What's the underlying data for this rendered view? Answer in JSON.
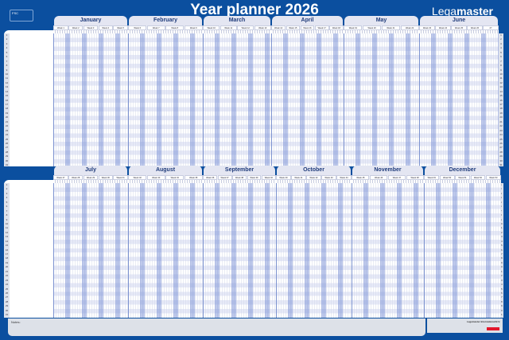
{
  "title": "Year planner 2026",
  "logo": {
    "light": "Lega",
    "bold": "master"
  },
  "fsc_label": "FSC",
  "row_numbers": [
    1,
    2,
    3,
    4,
    5,
    6,
    7,
    8,
    9,
    10,
    11,
    12,
    13,
    14,
    15,
    16,
    17,
    18,
    19,
    20,
    21,
    22,
    23,
    24,
    25,
    26,
    27,
    28,
    29,
    30,
    31
  ],
  "halves": [
    {
      "months": [
        {
          "name": "January",
          "weeks": [
            "Week 1",
            "Week 2",
            "Week 3",
            "Week 4",
            "Week 5"
          ]
        },
        {
          "name": "February",
          "weeks": [
            "Week 6",
            "Week 7",
            "Week 8",
            "Week 9"
          ]
        },
        {
          "name": "March",
          "weeks": [
            "Week 10",
            "Week 11",
            "Week 12",
            "Week 13"
          ]
        },
        {
          "name": "April",
          "weeks": [
            "Week 14",
            "Week 15",
            "Week 16",
            "Week 17",
            "Week 18"
          ]
        },
        {
          "name": "May",
          "weeks": [
            "Week 19",
            "Week 20",
            "Week 21",
            "Week 22"
          ]
        },
        {
          "name": "June",
          "weeks": [
            "Week 23",
            "Week 24",
            "Week 25",
            "Week 26",
            "27"
          ]
        }
      ]
    },
    {
      "months": [
        {
          "name": "July",
          "weeks": [
            "Week 27",
            "Week 28",
            "Week 29",
            "Week 30",
            "Week 31"
          ]
        },
        {
          "name": "August",
          "weeks": [
            "Week 32",
            "Week 33",
            "Week 34",
            "Week 35"
          ]
        },
        {
          "name": "September",
          "weeks": [
            "Week 36",
            "Week 37",
            "Week 38",
            "Week 39",
            "Week 40"
          ]
        },
        {
          "name": "October",
          "weeks": [
            "Week 40",
            "Week 41",
            "Week 42",
            "Week 43",
            "Week 44"
          ]
        },
        {
          "name": "November",
          "weeks": [
            "Week 45",
            "Week 46",
            "Week 47",
            "Week 48"
          ]
        },
        {
          "name": "December",
          "weeks": [
            "Week 49",
            "Week 50",
            "Week 51",
            "Week 52",
            "Week 53"
          ]
        }
      ]
    }
  ],
  "notes_label": "Notes:",
  "info": {
    "company": "Legamaster International B.V."
  },
  "colors": {
    "background": "#0b4f9f",
    "weekend": "#8ea3dc",
    "brand_red": "#e3172b"
  }
}
